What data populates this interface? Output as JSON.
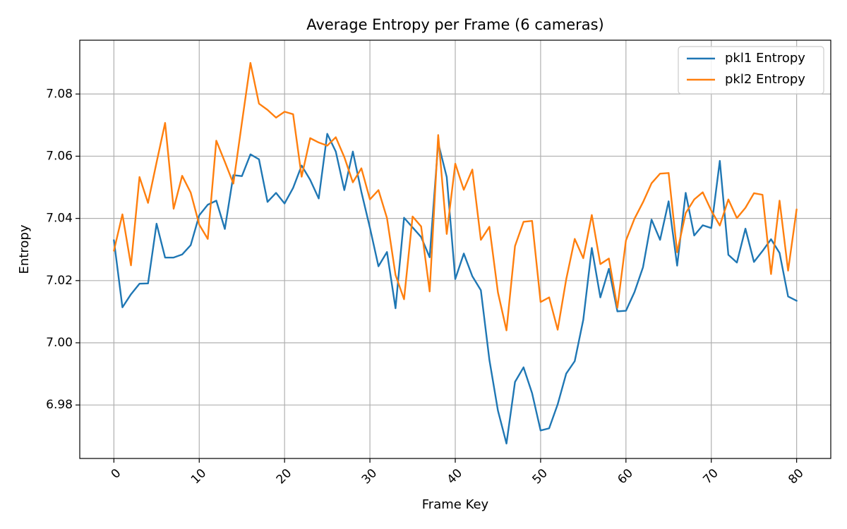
{
  "chart_data": {
    "type": "line",
    "title": "Average Entropy per Frame (6 cameras)",
    "xlabel": "Frame Key",
    "ylabel": "Entropy",
    "xlim": [
      -4,
      84
    ],
    "ylim": [
      6.9628,
      7.0973
    ],
    "x_ticks": [
      0,
      10,
      20,
      30,
      40,
      50,
      60,
      70,
      80
    ],
    "y_ticks": [
      6.98,
      7.0,
      7.02,
      7.04,
      7.06,
      7.08
    ],
    "y_tick_labels": [
      "6.98",
      "7.00",
      "7.02",
      "7.04",
      "7.06",
      "7.08"
    ],
    "x_tick_rotation": 45,
    "grid": true,
    "legend_position": "top-right",
    "x": [
      0,
      1,
      2,
      3,
      4,
      5,
      6,
      7,
      8,
      9,
      10,
      11,
      12,
      13,
      14,
      15,
      16,
      17,
      18,
      19,
      20,
      21,
      22,
      23,
      24,
      25,
      26,
      27,
      28,
      29,
      30,
      31,
      32,
      33,
      34,
      35,
      36,
      37,
      38,
      39,
      40,
      41,
      42,
      43,
      44,
      45,
      46,
      47,
      48,
      49,
      50,
      51,
      52,
      53,
      54,
      55,
      56,
      57,
      58,
      59,
      60,
      61,
      62,
      63,
      64,
      65,
      66,
      67,
      68,
      69,
      70,
      71,
      72,
      73,
      74,
      75,
      76,
      77,
      78,
      79,
      80
    ],
    "series": [
      {
        "name": "pkl1 Entropy",
        "color": "#1f77b4",
        "values": [
          7.033,
          7.0114,
          7.0156,
          7.019,
          7.0191,
          7.0383,
          7.0274,
          7.0274,
          7.0284,
          7.0314,
          7.041,
          7.0444,
          7.0457,
          7.0366,
          7.0539,
          7.0536,
          7.0606,
          7.059,
          7.0453,
          7.0482,
          7.0448,
          7.0498,
          7.057,
          7.0524,
          7.0464,
          7.0672,
          7.0615,
          7.0491,
          7.0615,
          7.0485,
          7.037,
          7.0246,
          7.0292,
          7.0111,
          7.0402,
          7.0371,
          7.034,
          7.0275,
          7.0643,
          7.0533,
          7.0205,
          7.0287,
          7.0214,
          7.0169,
          6.9945,
          6.9782,
          6.9676,
          6.9874,
          6.9921,
          6.9838,
          6.9718,
          6.9725,
          6.9802,
          6.9901,
          6.9941,
          7.0074,
          7.0305,
          7.0146,
          7.0238,
          7.0101,
          7.0103,
          7.0163,
          7.0243,
          7.0396,
          7.0331,
          7.0455,
          7.0248,
          7.0482,
          7.0345,
          7.0378,
          7.0369,
          7.0585,
          7.0283,
          7.0258,
          7.0367,
          7.026,
          7.0295,
          7.0333,
          7.0289,
          7.0149,
          7.0135
        ]
      },
      {
        "name": "pkl2 Entropy",
        "color": "#ff7f0e",
        "values": [
          7.0296,
          7.0413,
          7.0249,
          7.0533,
          7.045,
          7.058,
          7.0707,
          7.0431,
          7.0537,
          7.0483,
          7.038,
          7.0334,
          7.065,
          7.0582,
          7.0512,
          7.0708,
          7.09,
          7.0769,
          7.0749,
          7.0724,
          7.0743,
          7.0735,
          7.0534,
          7.0658,
          7.0644,
          7.0634,
          7.0661,
          7.0597,
          7.0516,
          7.0561,
          7.0461,
          7.0491,
          7.0401,
          7.0218,
          7.014,
          7.0406,
          7.0374,
          7.0165,
          7.0668,
          7.035,
          7.0576,
          7.0492,
          7.0557,
          7.0331,
          7.0373,
          7.0162,
          7.004,
          7.0311,
          7.0389,
          7.0392,
          7.0131,
          7.0146,
          7.0042,
          7.0204,
          7.0334,
          7.0272,
          7.0411,
          7.0253,
          7.0271,
          7.0113,
          7.0329,
          7.0399,
          7.0452,
          7.0513,
          7.0544,
          7.0546,
          7.0291,
          7.0417,
          7.0461,
          7.0484,
          7.0425,
          7.0377,
          7.0461,
          7.0401,
          7.0434,
          7.0481,
          7.0476,
          7.0221,
          7.0457,
          7.0232,
          7.0429
        ]
      }
    ]
  }
}
